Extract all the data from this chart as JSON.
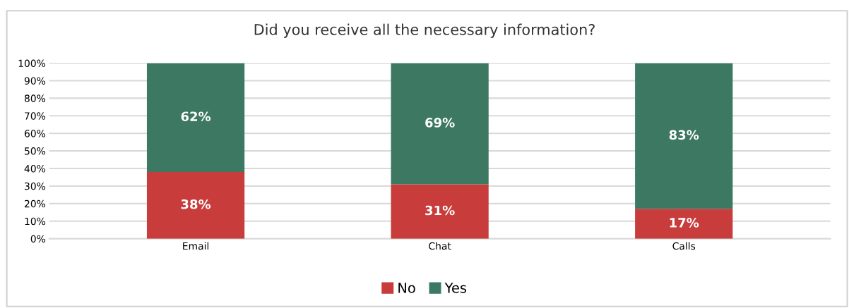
{
  "chart_data": {
    "type": "bar",
    "title": "Did you receive all the necessary information?",
    "categories": [
      "Email",
      "Chat",
      "Calls"
    ],
    "stacked": true,
    "grid": "y",
    "legend": "bottom",
    "series": [
      {
        "name": "No",
        "color": "#c83c3b",
        "values": [
          38,
          31,
          17
        ],
        "value_labels": [
          "38%",
          "31%",
          "17%"
        ]
      },
      {
        "name": "Yes",
        "color": "#3c7862",
        "values": [
          62,
          69,
          83
        ],
        "value_labels": [
          "62%",
          "69%",
          "83%"
        ]
      }
    ],
    "ylim": [
      0,
      100
    ],
    "yticks": [
      {
        "value": 0,
        "label": "0%"
      },
      {
        "value": 10,
        "label": "10%"
      },
      {
        "value": 20,
        "label": "20%"
      },
      {
        "value": 30,
        "label": "30%"
      },
      {
        "value": 40,
        "label": "40%"
      },
      {
        "value": 50,
        "label": "50%"
      },
      {
        "value": 60,
        "label": "60%"
      },
      {
        "value": 70,
        "label": "70%"
      },
      {
        "value": 80,
        "label": "80%"
      },
      {
        "value": 90,
        "label": "90%"
      },
      {
        "value": 100,
        "label": "100%"
      }
    ]
  }
}
